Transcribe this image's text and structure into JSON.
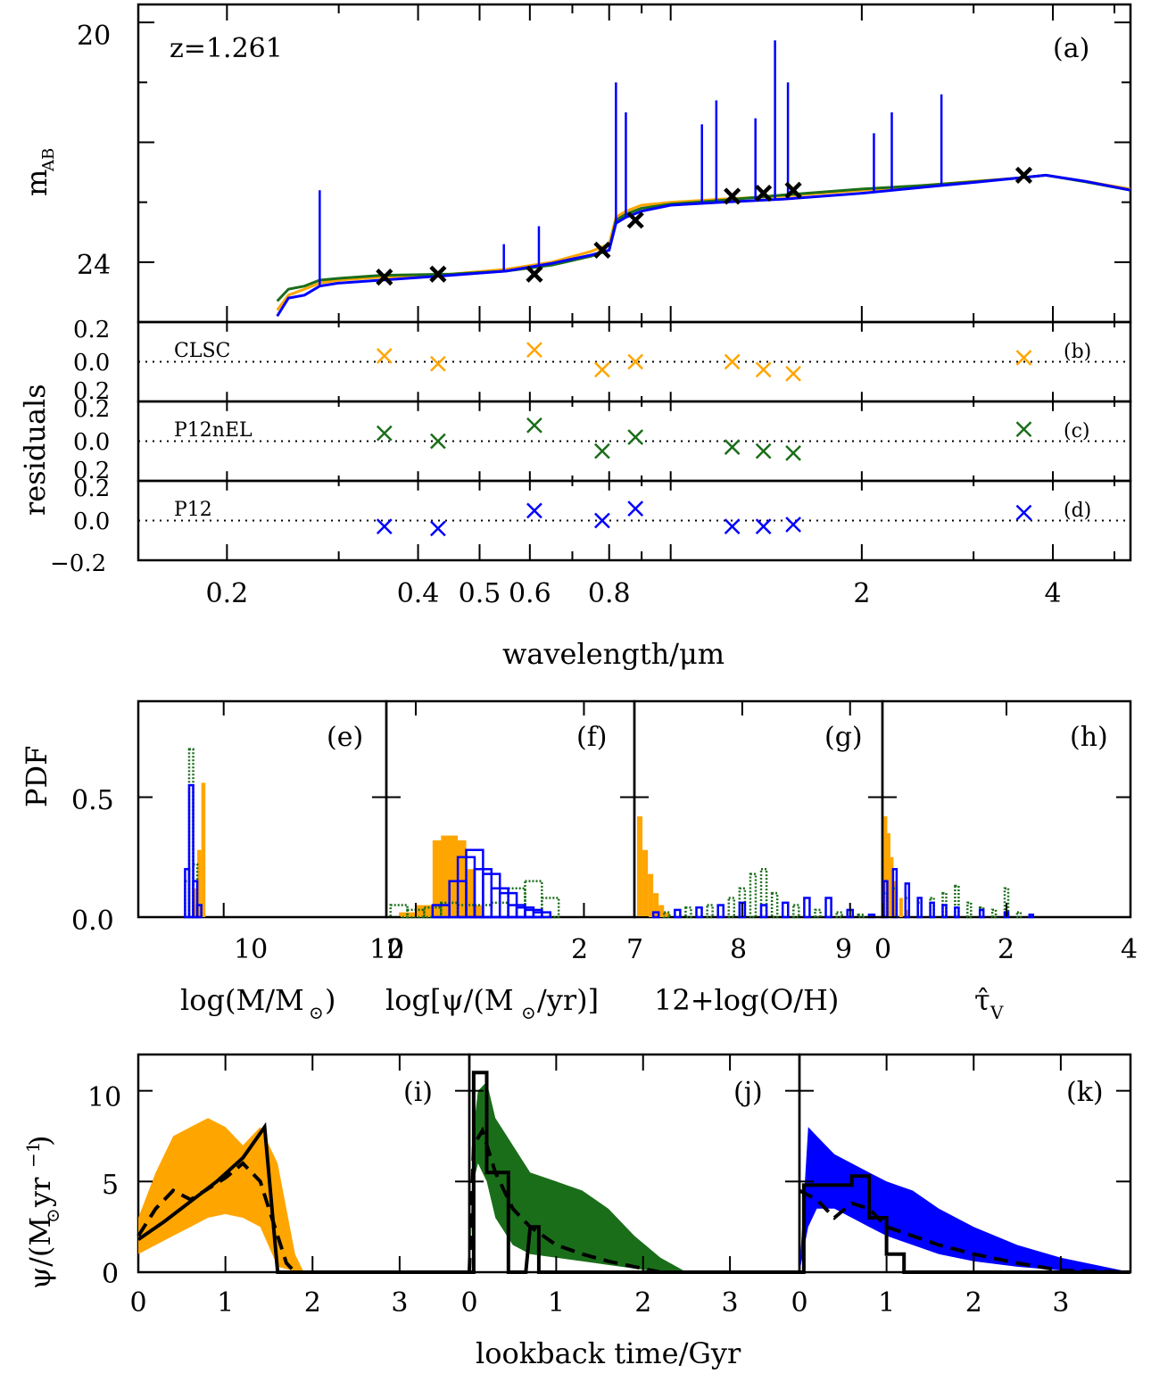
{
  "colors": {
    "CLSC": "#FFA500",
    "P12nEL": "#1A6E1A",
    "P12": "#0000FF",
    "photometry": "#000000",
    "fit": "#000000"
  },
  "labels": {
    "redshift": "z=1.261",
    "panel_a": "(a)",
    "panel_b": "(b)",
    "panel_c": "(c)",
    "panel_d": "(d)",
    "panel_e": "(e)",
    "panel_f": "(f)",
    "panel_g": "(g)",
    "panel_h": "(h)",
    "panel_i": "(i)",
    "panel_j": "(j)",
    "panel_k": "(k)",
    "model_b": "CLSC",
    "model_c": "P12nEL",
    "model_d": "P12",
    "ylabel_a_main": "m",
    "ylabel_a_sub": "AB",
    "ylabel_res": "residuals",
    "xlabel_top": "wavelength/μm",
    "ylabel_pdf": "PDF",
    "xlabel_e": "log(M/M",
    "xlabel_e_end": ")",
    "xlabel_f": "log[ψ/(M",
    "xlabel_f_end": "/yr)]",
    "xlabel_g": "12+log(O/H)",
    "xlabel_h_main": "τ̂",
    "xlabel_h_sub": "V",
    "ylabel_sfr_a": "ψ/(M",
    "ylabel_sfr_b": "yr",
    "ylabel_sfr_sup": "−1",
    "ylabel_sfr_c": ")",
    "xlabel_bottom": "lookback time/Gyr",
    "sun": "⊙"
  },
  "chart_data": [
    {
      "panel": "a",
      "type": "line",
      "xscale": "log",
      "xlim": [
        0.145,
        5.3
      ],
      "ylim": [
        25,
        19.7
      ],
      "ylabel": "mAB",
      "yticks": [
        20,
        24
      ],
      "annotation": "z=1.261",
      "photometry": {
        "x": [
          0.354,
          0.43,
          0.61,
          0.78,
          0.88,
          1.25,
          1.4,
          1.56,
          3.6
        ],
        "y": [
          24.25,
          24.2,
          24.2,
          23.8,
          23.3,
          22.9,
          22.85,
          22.8,
          22.55
        ]
      },
      "series": [
        {
          "name": "CLSC",
          "x": [
            0.24,
            0.25,
            0.265,
            0.28,
            0.3,
            0.35,
            0.45,
            0.55,
            0.65,
            0.75,
            0.8,
            0.82,
            0.85,
            0.9,
            1.0,
            1.2,
            1.5,
            2.0,
            2.5,
            3.0,
            3.5,
            3.9,
            4.5,
            5.3
          ],
          "y": [
            24.8,
            24.55,
            24.45,
            24.35,
            24.3,
            24.25,
            24.2,
            24.12,
            24.0,
            23.82,
            23.7,
            23.25,
            23.15,
            23.05,
            23.0,
            22.95,
            22.9,
            22.8,
            22.72,
            22.65,
            22.6,
            22.55,
            22.65,
            22.78
          ]
        },
        {
          "name": "P12nEL",
          "x": [
            0.24,
            0.25,
            0.265,
            0.28,
            0.3,
            0.35,
            0.45,
            0.55,
            0.65,
            0.75,
            0.8,
            0.82,
            0.85,
            0.9,
            1.0,
            1.2,
            1.5,
            2.0,
            2.5,
            3.0,
            3.5,
            3.9,
            4.5,
            5.3
          ],
          "y": [
            24.65,
            24.45,
            24.4,
            24.3,
            24.27,
            24.22,
            24.2,
            24.15,
            24.05,
            23.9,
            23.8,
            23.3,
            23.2,
            23.1,
            23.03,
            22.97,
            22.88,
            22.78,
            22.72,
            22.66,
            22.6,
            22.55,
            22.66,
            22.8
          ]
        },
        {
          "name": "P12",
          "x": [
            0.24,
            0.25,
            0.265,
            0.28,
            0.3,
            0.35,
            0.45,
            0.55,
            0.65,
            0.75,
            0.8,
            0.82,
            0.85,
            0.9,
            1.0,
            1.2,
            1.5,
            2.0,
            2.5,
            3.0,
            3.5,
            3.9,
            4.5,
            5.3
          ],
          "y": [
            24.9,
            24.6,
            24.55,
            24.4,
            24.35,
            24.3,
            24.22,
            24.15,
            24.02,
            23.88,
            23.8,
            23.35,
            23.25,
            23.15,
            23.05,
            23.0,
            22.95,
            22.85,
            22.75,
            22.67,
            22.6,
            22.55,
            22.65,
            22.8
          ]
        }
      ],
      "emission_lines": {
        "x": [
          0.28,
          0.546,
          0.62,
          0.82,
          0.85,
          1.12,
          1.18,
          1.36,
          1.46,
          1.53,
          2.09,
          2.23,
          2.67
        ],
        "y": [
          22.8,
          23.7,
          23.4,
          21.0,
          21.5,
          21.7,
          21.3,
          21.6,
          20.3,
          21.0,
          21.85,
          21.5,
          21.2
        ]
      }
    },
    {
      "panel": "b",
      "type": "scatter",
      "name": "CLSC",
      "xscale": "log",
      "ylim": [
        -0.2,
        0.2
      ],
      "yticks": [
        0.2,
        0.0,
        0.2
      ],
      "x": [
        0.354,
        0.43,
        0.61,
        0.78,
        0.88,
        1.25,
        1.4,
        1.56,
        3.6
      ],
      "y": [
        0.03,
        -0.01,
        0.06,
        -0.04,
        0.0,
        0.0,
        -0.04,
        -0.06,
        0.02
      ]
    },
    {
      "panel": "c",
      "type": "scatter",
      "name": "P12nEL",
      "xscale": "log",
      "ylim": [
        -0.2,
        0.2
      ],
      "yticks": [
        0.2,
        0.0,
        0.2
      ],
      "x": [
        0.354,
        0.43,
        0.61,
        0.78,
        0.88,
        1.25,
        1.4,
        1.56,
        3.6
      ],
      "y": [
        0.04,
        0.0,
        0.08,
        -0.05,
        0.02,
        -0.03,
        -0.05,
        -0.06,
        0.06
      ]
    },
    {
      "panel": "d",
      "type": "scatter",
      "name": "P12",
      "xscale": "log",
      "ylim": [
        -0.2,
        0.2
      ],
      "yticks": [
        0.2,
        0.0,
        -0.2
      ],
      "x": [
        0.354,
        0.43,
        0.61,
        0.78,
        0.88,
        1.25,
        1.4,
        1.56,
        3.6
      ],
      "y": [
        -0.03,
        -0.04,
        0.05,
        0.0,
        0.06,
        -0.03,
        -0.03,
        -0.02,
        0.04
      ],
      "xticks": [
        0.2,
        0.4,
        0.5,
        0.6,
        0.8,
        2,
        4
      ],
      "xlabel": "wavelength/μm"
    },
    {
      "panel": "e",
      "type": "bar",
      "xlabel": "log(M/M⊙)",
      "ylabel": "PDF",
      "xlim": [
        8.95,
        12.0
      ],
      "ylim": [
        0,
        0.9
      ],
      "xticks": [
        10,
        12
      ],
      "yticks": [
        0.0,
        0.5
      ],
      "series": [
        {
          "name": "CLSC",
          "x": [
            9.65,
            9.7,
            9.75
          ],
          "y": [
            0.12,
            0.28,
            0.56
          ]
        },
        {
          "name": "P12nEL",
          "x": [
            9.55,
            9.6,
            9.65,
            9.7
          ],
          "y": [
            0.15,
            0.7,
            0.22,
            0.05
          ]
        },
        {
          "name": "P12",
          "x": [
            9.55,
            9.6,
            9.65,
            9.7
          ],
          "y": [
            0.2,
            0.55,
            0.15,
            0.05
          ]
        }
      ]
    },
    {
      "panel": "f",
      "type": "bar",
      "xlabel": "log[ψ/(M⊙/yr)]",
      "xlim": [
        -0.35,
        2.6
      ],
      "xticks": [
        0,
        2
      ],
      "series": [
        {
          "name": "CLSC",
          "x": [
            -0.1,
            0.1,
            0.3,
            0.4,
            0.5,
            0.6,
            0.7
          ],
          "y": [
            0.02,
            0.05,
            0.32,
            0.34,
            0.32,
            0.2,
            0.05
          ]
        },
        {
          "name": "P12nEL",
          "x": [
            -0.2,
            0.0,
            0.2,
            0.4,
            0.6,
            0.8,
            1.0,
            1.2,
            1.4,
            1.6
          ],
          "y": [
            0.05,
            0.03,
            0.04,
            0.06,
            0.05,
            0.05,
            0.06,
            0.12,
            0.15,
            0.08
          ]
        },
        {
          "name": "P12",
          "x": [
            0.3,
            0.5,
            0.6,
            0.7,
            0.8,
            0.9,
            1.0,
            1.1,
            1.2,
            1.3,
            1.4,
            1.5
          ],
          "y": [
            0.05,
            0.15,
            0.25,
            0.28,
            0.2,
            0.18,
            0.12,
            0.1,
            0.05,
            0.04,
            0.03,
            0.02
          ]
        }
      ]
    },
    {
      "panel": "g",
      "type": "bar",
      "xlabel": "12+log(O/H)",
      "xlim": [
        7.0,
        9.3
      ],
      "xticks": [
        7,
        8,
        9
      ],
      "series": [
        {
          "name": "CLSC",
          "x": [
            7.05,
            7.1,
            7.15,
            7.2,
            7.25,
            7.3
          ],
          "y": [
            0.42,
            0.28,
            0.18,
            0.1,
            0.05,
            0.02
          ]
        },
        {
          "name": "P12nEL",
          "x": [
            7.3,
            7.5,
            7.7,
            7.9,
            8.0,
            8.1,
            8.2,
            8.3,
            8.5,
            8.7,
            8.9,
            9.1
          ],
          "y": [
            0.02,
            0.04,
            0.05,
            0.08,
            0.12,
            0.18,
            0.2,
            0.1,
            0.05,
            0.03,
            0.02,
            0.01
          ]
        },
        {
          "name": "P12",
          "x": [
            7.2,
            7.4,
            7.6,
            7.8,
            8.0,
            8.2,
            8.4,
            8.6,
            8.8,
            9.0,
            9.2
          ],
          "y": [
            0.02,
            0.03,
            0.04,
            0.05,
            0.06,
            0.05,
            0.06,
            0.08,
            0.08,
            0.03,
            0.01
          ]
        }
      ]
    },
    {
      "panel": "h",
      "type": "bar",
      "xlabel": "τ̂V",
      "xlim": [
        0.0,
        4.0
      ],
      "xticks": [
        0,
        2,
        4
      ],
      "series": [
        {
          "name": "CLSC",
          "x": [
            0.05,
            0.1,
            0.15,
            0.2,
            0.3,
            0.4
          ],
          "y": [
            0.42,
            0.35,
            0.25,
            0.15,
            0.08,
            0.03
          ]
        },
        {
          "name": "P12nEL",
          "x": [
            0.05,
            0.2,
            0.4,
            0.6,
            0.8,
            1.0,
            1.2,
            1.4,
            1.6,
            1.8,
            2.0,
            2.2
          ],
          "y": [
            0.1,
            0.12,
            0.08,
            0.06,
            0.08,
            0.1,
            0.13,
            0.06,
            0.04,
            0.03,
            0.12,
            0.02
          ]
        },
        {
          "name": "P12",
          "x": [
            0.05,
            0.2,
            0.4,
            0.6,
            0.8,
            1.0,
            1.2,
            1.6,
            2.0,
            2.4
          ],
          "y": [
            0.15,
            0.2,
            0.14,
            0.08,
            0.06,
            0.05,
            0.04,
            0.03,
            0.02,
            0.01
          ]
        }
      ]
    },
    {
      "panel": "i",
      "type": "area",
      "name": "CLSC",
      "ylabel": "ψ/(M⊙yr−1)",
      "xlim": [
        0,
        3.8
      ],
      "ylim": [
        0,
        12
      ],
      "xticks": [
        0,
        1,
        2,
        3
      ],
      "yticks": [
        0,
        5,
        10
      ],
      "band_x": [
        0,
        0.2,
        0.4,
        0.6,
        0.8,
        1.0,
        1.2,
        1.4,
        1.6,
        1.8,
        1.9
      ],
      "band_lo": [
        1.0,
        1.5,
        2.0,
        2.5,
        3.0,
        3.2,
        3.0,
        2.5,
        0.3,
        0.05,
        0
      ],
      "band_hi": [
        3.0,
        5.5,
        7.5,
        8.0,
        8.5,
        8.0,
        7.0,
        8.0,
        6.0,
        1.0,
        0
      ],
      "median_x": [
        0,
        0.2,
        0.4,
        0.6,
        0.8,
        1.0,
        1.2,
        1.4,
        1.5,
        1.6,
        1.7,
        1.8,
        2.0,
        3.8
      ],
      "median_y": [
        2.0,
        3.5,
        4.5,
        4.0,
        4.6,
        5.2,
        6.0,
        5.0,
        3.5,
        2.0,
        0.5,
        0.0,
        0.0,
        0.0
      ],
      "fit_x": [
        0,
        0.3,
        0.6,
        0.9,
        1.2,
        1.45,
        1.6,
        1.7,
        3.8
      ],
      "fit_y": [
        1.8,
        2.8,
        3.9,
        5.0,
        6.3,
        8.0,
        0.0,
        0.0,
        0.0
      ]
    },
    {
      "panel": "j",
      "type": "area",
      "name": "P12nEL",
      "xlim": [
        0,
        3.8
      ],
      "ylim": [
        0,
        12
      ],
      "xticks": [
        0,
        1,
        2,
        3
      ],
      "band_x": [
        0,
        0.05,
        0.1,
        0.2,
        0.3,
        0.5,
        0.7,
        1.0,
        1.3,
        1.6,
        1.9,
        2.2,
        2.5
      ],
      "band_lo": [
        0,
        5.0,
        6.0,
        5.0,
        3.0,
        1.5,
        1.0,
        0.8,
        0.6,
        0.4,
        0.2,
        0.0,
        0.0
      ],
      "band_hi": [
        0,
        8.0,
        10.0,
        10.5,
        8.5,
        7.0,
        5.5,
        5.0,
        4.5,
        3.5,
        2.0,
        0.8,
        0.0
      ],
      "median_x": [
        0,
        0.05,
        0.15,
        0.3,
        0.5,
        0.7,
        1.0,
        1.3,
        1.6,
        1.9,
        2.2,
        3.8
      ],
      "median_y": [
        0,
        7.0,
        7.8,
        5.5,
        3.5,
        2.5,
        1.5,
        1.0,
        0.6,
        0.3,
        0.0,
        0.0
      ],
      "fit_x": [
        0,
        0.05,
        0.05,
        0.2,
        0.2,
        0.45,
        0.45,
        0.55,
        0.55,
        0.65,
        0.7,
        0.8,
        0.8,
        3.8
      ],
      "fit_y": [
        0,
        0,
        11,
        11,
        5.5,
        5.5,
        0,
        0,
        0,
        0,
        2.5,
        2.5,
        0,
        0
      ]
    },
    {
      "panel": "k",
      "type": "area",
      "name": "P12",
      "xlim": [
        0,
        3.8
      ],
      "ylim": [
        0,
        12
      ],
      "xticks": [
        0,
        1,
        2,
        3
      ],
      "band_x": [
        0,
        0.1,
        0.2,
        0.4,
        0.6,
        0.8,
        1.0,
        1.3,
        1.6,
        2.0,
        2.5,
        3.0,
        3.5,
        3.8
      ],
      "band_lo": [
        0,
        2.5,
        3.5,
        3.5,
        3.0,
        2.5,
        2.0,
        1.5,
        1.0,
        0.6,
        0.3,
        0.1,
        0.0,
        0.0
      ],
      "band_hi": [
        0,
        8.0,
        7.5,
        6.5,
        6.0,
        5.5,
        5.0,
        4.5,
        3.5,
        2.5,
        1.5,
        0.8,
        0.3,
        0.0
      ],
      "median_x": [
        0,
        0.2,
        0.4,
        0.6,
        0.8,
        1.0,
        1.3,
        1.6,
        2.0,
        2.5,
        3.0,
        3.8
      ],
      "median_y": [
        4.5,
        4.0,
        3.0,
        3.8,
        3.5,
        2.5,
        2.0,
        1.5,
        1.0,
        0.5,
        0.1,
        0.0
      ],
      "fit_x": [
        0,
        0.05,
        0.05,
        0.6,
        0.6,
        0.8,
        0.8,
        1.0,
        1.0,
        1.2,
        1.2,
        3.8
      ],
      "fit_y": [
        0,
        0,
        4.8,
        4.8,
        5.3,
        5.3,
        3.0,
        3.0,
        1.0,
        1.0,
        0,
        0
      ],
      "xlabel": "lookback time/Gyr"
    }
  ]
}
